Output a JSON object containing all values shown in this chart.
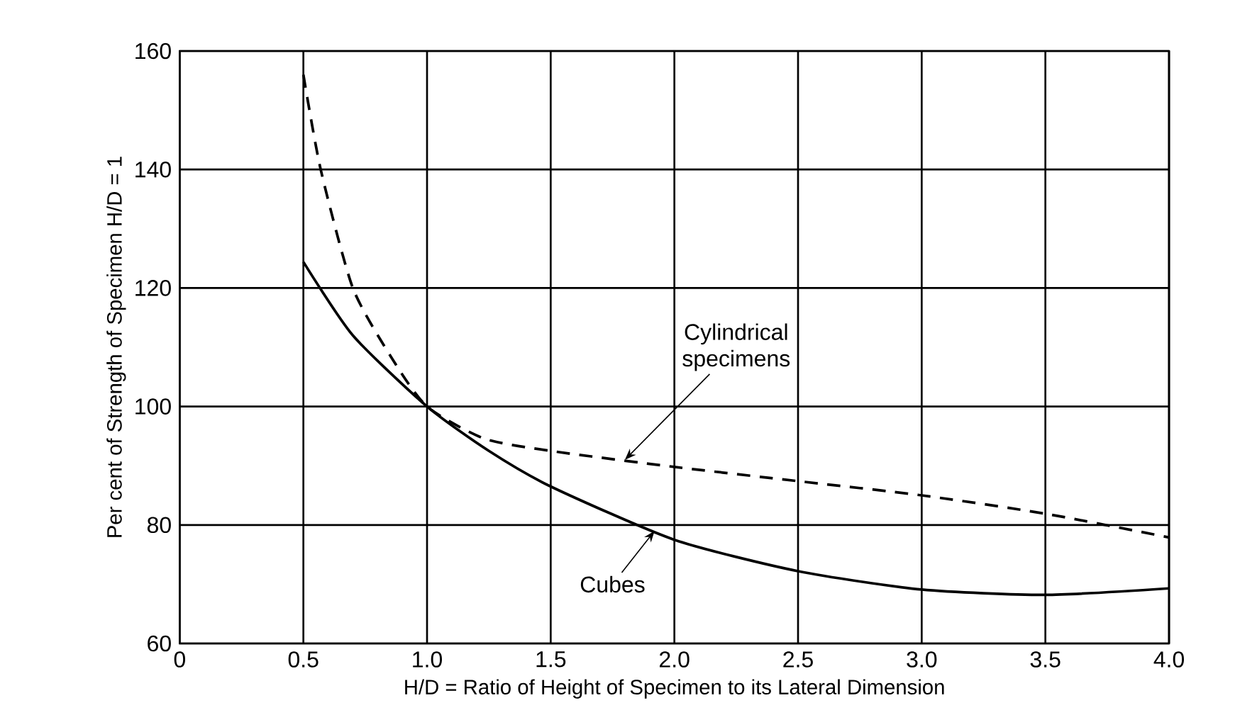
{
  "chart_data": {
    "type": "line",
    "xlabel": "H/D = Ratio of Height of Specimen to its Lateral Dimension",
    "ylabel": "Per cent of Strength of Specimen H/D = 1",
    "xlim": [
      0,
      4.0
    ],
    "ylim": [
      60,
      160
    ],
    "xticks": [
      0,
      0.5,
      {
        "value": 1.0,
        "label": "1.0"
      },
      1.5,
      {
        "value": 2.0,
        "label": "2.0"
      },
      2.5,
      {
        "value": 3.0,
        "label": "3.0"
      },
      3.5,
      {
        "value": 4.0,
        "label": "4.0"
      }
    ],
    "yticks": [
      60,
      80,
      100,
      120,
      140,
      160
    ],
    "grid": true,
    "marker": "none",
    "series": [
      {
        "color": "#000000",
        "line_style": "dashed",
        "x": [
          0.5,
          0.57,
          0.7,
          0.86,
          1.0,
          1.23,
          1.5,
          2.0,
          2.5,
          3.0,
          3.5,
          4.0
        ],
        "values": [
          156,
          140,
          120,
          108,
          100,
          94.6,
          92.5,
          89.8,
          87.4,
          85.0,
          81.9,
          77.9
        ]
      },
      {
        "color": "#000000",
        "line_style": "solid",
        "x": [
          0.5,
          0.7,
          1.0,
          1.25,
          1.5,
          2.0,
          2.5,
          3.0,
          3.5,
          4.0
        ],
        "values": [
          124.4,
          112,
          100,
          92.5,
          86.5,
          77.5,
          72.2,
          69.1,
          68.2,
          69.3
        ]
      }
    ],
    "annotations": [
      {
        "text": "Cylindrical specimens",
        "x": 1.8,
        "y": 91
      },
      {
        "text": "Cubes",
        "x": 1.92,
        "y": 79
      }
    ]
  }
}
